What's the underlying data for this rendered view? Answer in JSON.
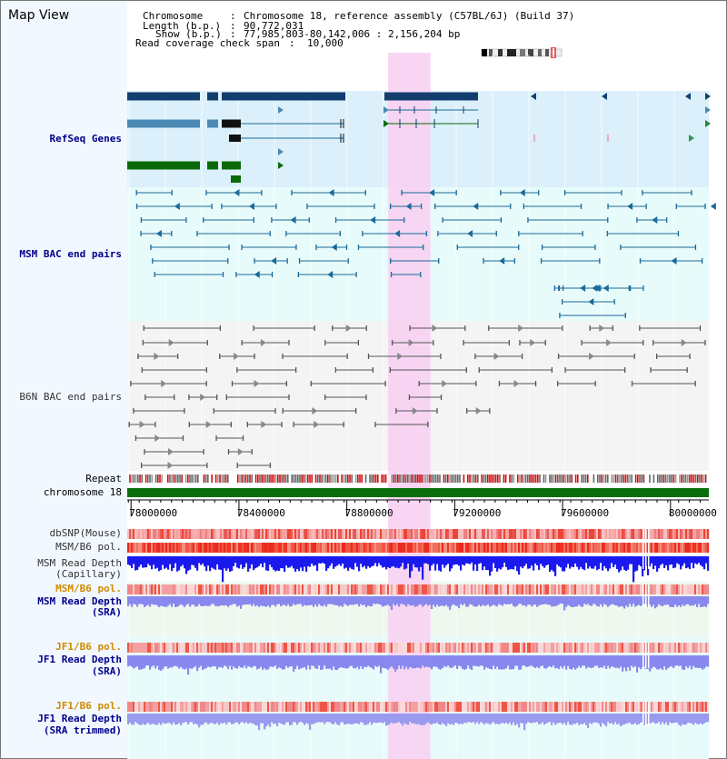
{
  "header": {
    "title": "Map View",
    "chromosome_label": "Chromosome",
    "chromosome_value": "Chromosome 18, reference assembly (C57BL/6J) (Build 37)",
    "length_label": "Length (b.p.)",
    "length_value": "90,772,031",
    "show_label": "Show (b.p.)",
    "show_value": "77,985,803-80,142,006 : 2,156,204 bp",
    "coverage_label": "Read coverage check span",
    "coverage_value": "10,000"
  },
  "tracks": {
    "refseq": "RefSeq Genes",
    "msm_bac": "MSM BAC end pairs",
    "b6n_bac": "B6N BAC end pairs",
    "repeat": "Repeat",
    "chromosome": "chromosome 18",
    "dbsnp": "dbSNP(Mouse)",
    "msm_pol_1": "MSM/B6 pol.",
    "msm_depth_cap_1": "MSM Read Depth",
    "msm_depth_cap_2": "(Capillary)",
    "msm_pol_2": "MSM/B6 pol.",
    "msm_depth_sra_1": "MSM Read Depth",
    "msm_depth_sra_2": "(SRA)",
    "jf1_pol_1": "JF1/B6 pol.",
    "jf1_depth_1": "JF1 Read Depth",
    "jf1_depth_2": "(SRA)",
    "jf1_pol_2": "JF1/B6 pol.",
    "jf1_trim_1": "JF1 Read Depth",
    "jf1_trim_2": "(SRA trimmed)"
  },
  "axis": {
    "ticks": [
      "78000000",
      "78400000",
      "78800000",
      "79200000",
      "79600000",
      "80000000"
    ],
    "tick_values": [
      78000000,
      78400000,
      78800000,
      79200000,
      79600000,
      80000000
    ],
    "range": [
      77985803,
      80142006
    ]
  },
  "highlight": {
    "start": 78953000,
    "end": 79110000,
    "color": "#f7d2f2"
  },
  "colors": {
    "refseq_bg": "#dcf0fb",
    "msm_bg": "#e8fbfb",
    "b6n_bg": "#f4f4f4",
    "gene_dark": "#123e6e",
    "gene_mid": "#4a8ab4",
    "gene_green": "#0a6a0a",
    "chrom": "#0a6e0a",
    "depth_cap": "#1a1aee",
    "depth_sra": "#8888ee",
    "pol_red": "#ee3322",
    "msm_bac_line": "#1a6a9a",
    "b6n_line": "#555555"
  }
}
